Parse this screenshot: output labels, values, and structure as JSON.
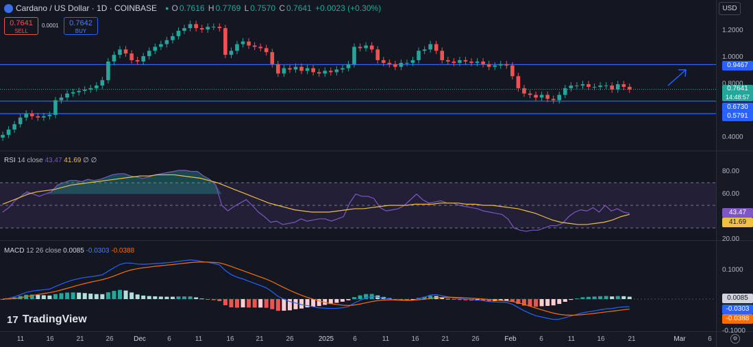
{
  "header": {
    "symbol_title": "Cardano / US Dollar · 1D · COINBASE",
    "open_label": "O",
    "open": "0.7616",
    "high_label": "H",
    "high": "0.7769",
    "low_label": "L",
    "low": "0.7570",
    "close_label": "C",
    "close": "0.7641",
    "change": "+0.0023 (+0.30%)"
  },
  "trade": {
    "sell_price": "0.7641",
    "sell_label": "SELL",
    "spread": "0.0001",
    "buy_price": "0.7642",
    "buy_label": "BUY"
  },
  "currency": "USD",
  "price_axis": {
    "ticks": [
      "1.2000",
      "1.0000",
      "0.8000",
      "0.4000"
    ],
    "tags": {
      "resistance": "0.9467",
      "last": "0.7641",
      "countdown": "14:48:57",
      "support1": "0.6730",
      "support2": "0.5791"
    }
  },
  "rsi": {
    "title": "RSI",
    "params": "14 close",
    "value": "43.47",
    "ma": "41.69",
    "extra1": "∅",
    "extra2": "∅",
    "ticks": [
      "80.00",
      "60.00",
      "20.00"
    ]
  },
  "macd": {
    "title": "MACD",
    "params": "12 26 close",
    "hist": "0.0085",
    "macd": "-0.0303",
    "signal": "-0.0388",
    "ticks": [
      "0.1000",
      "-0.1000"
    ]
  },
  "x_axis": [
    "11",
    "16",
    "21",
    "26",
    "Dec",
    "6",
    "11",
    "16",
    "21",
    "26",
    "2025",
    "6",
    "11",
    "16",
    "21",
    "26",
    "Feb",
    "6",
    "11",
    "16",
    "21",
    "Mar",
    "6"
  ],
  "brand": "TradingView",
  "colors": {
    "up": "#26a69a",
    "down": "#ef5350",
    "level": "#2962ff",
    "rsi": "#7e57c2",
    "rsi_ma": "#f0c040",
    "macd": "#2962ff",
    "signal": "#ff6d00"
  },
  "chart_data": {
    "type": "candlestick",
    "title": "Cardano / US Dollar · 1D · COINBASE",
    "levels": [
      0.9467,
      0.673,
      0.5791
    ],
    "last_price": 0.7641,
    "closes": [
      0.42,
      0.46,
      0.5,
      0.55,
      0.58,
      0.56,
      0.55,
      0.56,
      0.57,
      0.68,
      0.7,
      0.73,
      0.74,
      0.75,
      0.76,
      0.77,
      0.79,
      0.83,
      0.97,
      1.02,
      1.06,
      1.03,
      0.98,
      0.97,
      1.01,
      1.05,
      1.08,
      1.1,
      1.13,
      1.16,
      1.2,
      1.22,
      1.25,
      1.22,
      1.21,
      1.23,
      1.23,
      1.22,
      1.02,
      1.05,
      1.1,
      1.12,
      1.09,
      1.08,
      1.07,
      1.04,
      0.95,
      0.88,
      0.92,
      0.91,
      0.93,
      0.9,
      0.92,
      0.89,
      0.88,
      0.9,
      0.89,
      0.91,
      0.92,
      0.95,
      1.08,
      1.07,
      1.09,
      1.06,
      0.98,
      0.96,
      0.95,
      0.93,
      0.96,
      0.96,
      0.98,
      1.05,
      1.06,
      1.1,
      1.05,
      0.98,
      0.97,
      0.96,
      0.98,
      0.97,
      0.96,
      0.97,
      0.95,
      0.93,
      0.94,
      0.95,
      0.94,
      0.86,
      0.77,
      0.73,
      0.72,
      0.7,
      0.72,
      0.69,
      0.68,
      0.72,
      0.77,
      0.79,
      0.79,
      0.8,
      0.78,
      0.78,
      0.79,
      0.79,
      0.76,
      0.8,
      0.78,
      0.76
    ],
    "rsi": [
      44,
      48,
      54,
      58,
      62,
      60,
      58,
      60,
      62,
      68,
      70,
      72,
      72,
      71,
      73,
      72,
      73,
      75,
      77,
      78,
      78,
      76,
      75,
      74,
      75,
      77,
      78,
      79,
      80,
      81,
      81,
      80,
      80,
      76,
      73,
      68,
      50,
      45,
      49,
      52,
      55,
      50,
      44,
      40,
      35,
      36,
      33,
      34,
      35,
      38,
      36,
      37,
      38,
      38,
      36,
      38,
      40,
      52,
      60,
      58,
      58,
      56,
      48,
      45,
      46,
      47,
      50,
      55,
      60,
      55,
      52,
      53,
      54,
      52,
      52,
      50,
      49,
      48,
      47,
      45,
      44,
      43,
      42,
      38,
      30,
      28,
      27,
      28,
      28,
      30,
      32,
      32,
      34,
      40,
      44,
      46,
      45,
      48,
      44,
      50,
      45,
      47,
      44,
      43
    ],
    "rsi_ma": [
      51,
      54,
      57,
      60,
      62,
      63,
      64,
      66,
      68,
      69,
      70,
      71,
      72,
      73,
      74,
      75,
      76,
      76,
      77,
      77,
      77,
      76,
      75,
      74,
      72,
      70,
      67,
      64,
      61,
      58,
      55,
      52,
      50,
      48,
      46,
      45,
      44,
      44,
      44,
      45,
      46,
      47,
      47,
      48,
      49,
      50,
      50,
      50,
      51,
      51,
      51,
      52,
      52,
      52,
      51,
      51,
      50,
      50,
      49,
      48,
      47,
      45,
      43,
      40,
      37,
      35,
      34,
      33,
      33,
      34,
      35,
      37,
      40,
      42
    ]
  }
}
